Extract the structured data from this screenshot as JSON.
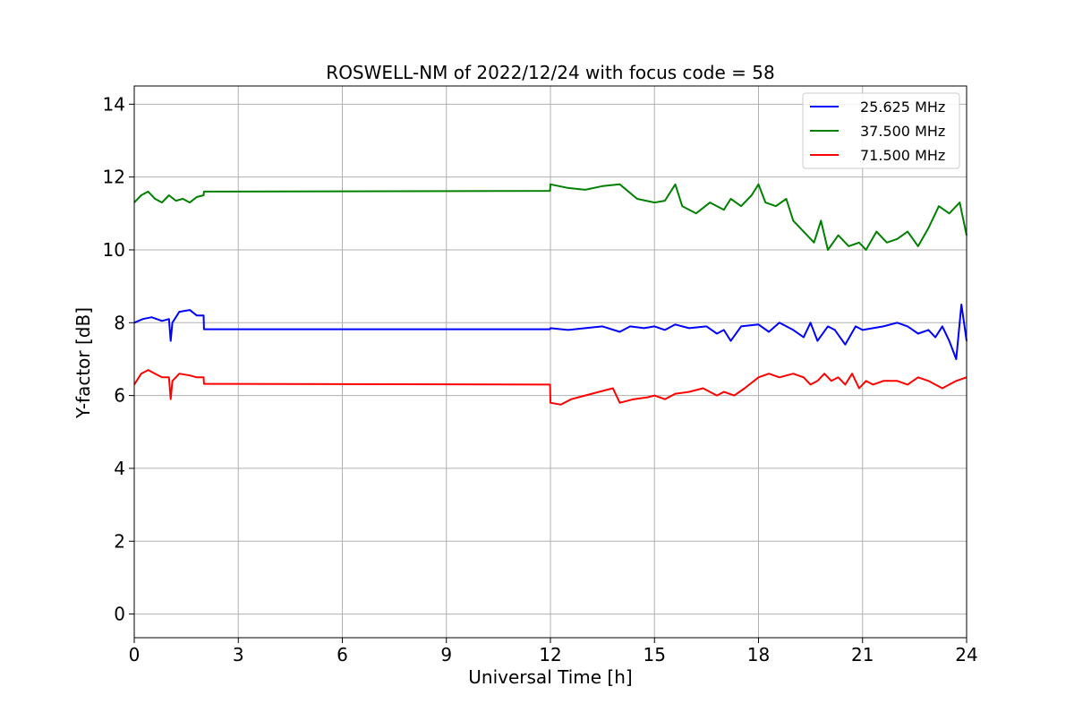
{
  "chart_data": {
    "type": "line",
    "title": "ROSWELL-NM of 2022/12/24 with focus code = 58",
    "xlabel": "Universal Time [h]",
    "ylabel": "Y-factor [dB]",
    "xlim": [
      0,
      24
    ],
    "ylim": [
      -0.65,
      14.5
    ],
    "xticks": [
      0,
      3,
      6,
      9,
      12,
      15,
      18,
      21,
      24
    ],
    "yticks": [
      0,
      2,
      4,
      6,
      8,
      10,
      12,
      14
    ],
    "grid": true,
    "legend_position": "top-right",
    "series": [
      {
        "name": "25.625 MHz",
        "color": "#0000ff",
        "x": [
          0,
          0.25,
          0.5,
          0.8,
          1.0,
          1.05,
          1.1,
          1.3,
          1.6,
          1.8,
          2.0,
          2.01,
          11.99,
          12.0,
          12.5,
          13.0,
          13.5,
          14.0,
          14.3,
          14.7,
          15.0,
          15.3,
          15.6,
          16.0,
          16.5,
          16.8,
          17.0,
          17.2,
          17.5,
          18.0,
          18.3,
          18.6,
          19.0,
          19.3,
          19.5,
          19.7,
          20.0,
          20.2,
          20.5,
          20.8,
          21.0,
          21.3,
          21.6,
          22.0,
          22.3,
          22.6,
          22.9,
          23.1,
          23.3,
          23.5,
          23.7,
          23.85,
          24.0
        ],
        "y": [
          8.0,
          8.1,
          8.15,
          8.05,
          8.1,
          7.5,
          8.0,
          8.3,
          8.35,
          8.2,
          8.2,
          7.82,
          7.82,
          7.85,
          7.8,
          7.85,
          7.9,
          7.75,
          7.9,
          7.85,
          7.9,
          7.8,
          7.95,
          7.85,
          7.9,
          7.7,
          7.8,
          7.5,
          7.9,
          7.95,
          7.75,
          8.0,
          7.8,
          7.6,
          8.0,
          7.5,
          7.9,
          7.8,
          7.4,
          7.9,
          7.8,
          7.85,
          7.9,
          8.0,
          7.9,
          7.7,
          7.8,
          7.6,
          7.9,
          7.5,
          7.0,
          8.5,
          7.5
        ]
      },
      {
        "name": "37.500 MHz",
        "color": "#008000",
        "x": [
          0,
          0.2,
          0.4,
          0.6,
          0.8,
          1.0,
          1.2,
          1.4,
          1.6,
          1.8,
          2.0,
          2.01,
          11.99,
          12.0,
          12.5,
          13.0,
          13.5,
          14.0,
          14.5,
          15.0,
          15.3,
          15.6,
          15.8,
          16.2,
          16.6,
          17.0,
          17.2,
          17.5,
          17.8,
          18.0,
          18.2,
          18.5,
          18.8,
          19.0,
          19.3,
          19.6,
          19.8,
          20.0,
          20.3,
          20.6,
          20.9,
          21.1,
          21.4,
          21.7,
          22.0,
          22.3,
          22.6,
          22.9,
          23.2,
          23.5,
          23.8,
          24.0
        ],
        "y": [
          11.3,
          11.5,
          11.6,
          11.4,
          11.3,
          11.5,
          11.35,
          11.4,
          11.3,
          11.45,
          11.5,
          11.6,
          11.62,
          11.8,
          11.7,
          11.65,
          11.75,
          11.8,
          11.4,
          11.3,
          11.35,
          11.8,
          11.2,
          11.0,
          11.3,
          11.1,
          11.4,
          11.2,
          11.5,
          11.8,
          11.3,
          11.2,
          11.4,
          10.8,
          10.5,
          10.2,
          10.8,
          10.0,
          10.4,
          10.1,
          10.2,
          10.0,
          10.5,
          10.2,
          10.3,
          10.5,
          10.1,
          10.6,
          11.2,
          11.0,
          11.3,
          10.4
        ]
      },
      {
        "name": "71.500 MHz",
        "color": "#ff0000",
        "x": [
          0,
          0.2,
          0.4,
          0.6,
          0.8,
          1.0,
          1.05,
          1.1,
          1.3,
          1.6,
          1.8,
          2.0,
          2.01,
          11.99,
          12.0,
          12.3,
          12.6,
          13.0,
          13.4,
          13.8,
          14.0,
          14.4,
          14.8,
          15.0,
          15.3,
          15.6,
          16.0,
          16.4,
          16.8,
          17.0,
          17.3,
          17.6,
          18.0,
          18.3,
          18.6,
          19.0,
          19.3,
          19.5,
          19.7,
          19.9,
          20.1,
          20.3,
          20.5,
          20.7,
          20.9,
          21.1,
          21.3,
          21.6,
          22.0,
          22.3,
          22.6,
          22.9,
          23.1,
          23.3,
          23.5,
          23.7,
          24.0
        ],
        "y": [
          6.3,
          6.6,
          6.7,
          6.6,
          6.5,
          6.5,
          5.9,
          6.4,
          6.6,
          6.55,
          6.5,
          6.5,
          6.32,
          6.3,
          5.8,
          5.75,
          5.9,
          6.0,
          6.1,
          6.2,
          5.8,
          5.9,
          5.95,
          6.0,
          5.9,
          6.05,
          6.1,
          6.2,
          6.0,
          6.1,
          6.0,
          6.2,
          6.5,
          6.6,
          6.5,
          6.6,
          6.5,
          6.3,
          6.4,
          6.6,
          6.4,
          6.5,
          6.3,
          6.6,
          6.2,
          6.4,
          6.3,
          6.4,
          6.4,
          6.3,
          6.5,
          6.4,
          6.3,
          6.2,
          6.3,
          6.4,
          6.5
        ]
      }
    ]
  }
}
